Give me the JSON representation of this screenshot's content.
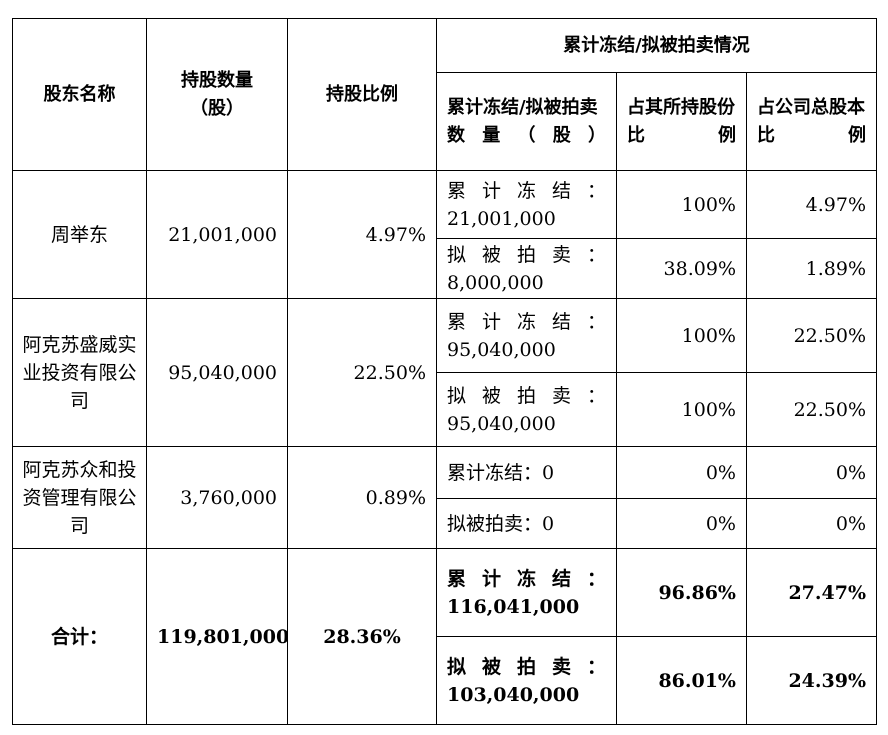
{
  "header": {
    "holder_name": "股东名称",
    "shares_held": "持股数量\n（股）",
    "holding_ratio": "持股比例",
    "group_title": "累计冻结/拟被拍卖情况",
    "frozen_qty": "累计冻结/拟被拍卖数量（股）",
    "pct_of_holding": "占其所持股份比例",
    "pct_of_total": "占公司总股本比例"
  },
  "rows": [
    {
      "name": "周举东",
      "shares": "21,001,000",
      "ratio": "4.97%",
      "sub": [
        {
          "label": "累计冻结：",
          "qty": "21,001,000",
          "pct_holding": "100%",
          "pct_total": "4.97%"
        },
        {
          "label": "拟被拍卖：",
          "qty": "8,000,000",
          "pct_holding": "38.09%",
          "pct_total": "1.89%"
        }
      ]
    },
    {
      "name": "阿克苏盛威实业投资有限公司",
      "shares": "95,040,000",
      "ratio": "22.50%",
      "sub": [
        {
          "label": "累计冻结：",
          "qty": "95,040,000",
          "pct_holding": "100%",
          "pct_total": "22.50%"
        },
        {
          "label": "拟被拍卖：",
          "qty": "95,040,000",
          "pct_holding": "100%",
          "pct_total": "22.50%"
        }
      ]
    },
    {
      "name": "阿克苏众和投资管理有限公司",
      "shares": "3,760,000",
      "ratio": "0.89%",
      "sub": [
        {
          "label": "累计冻结：0",
          "qty": "",
          "pct_holding": "0%",
          "pct_total": "0%"
        },
        {
          "label": "拟被拍卖：0",
          "qty": "",
          "pct_holding": "0%",
          "pct_total": "0%"
        }
      ]
    }
  ],
  "total": {
    "label": "合计：",
    "shares": "119,801,000",
    "ratio": "28.36%",
    "sub": [
      {
        "label": "累计冻结：",
        "qty": "116,041,000",
        "pct_holding": "96.86%",
        "pct_total": "27.47%"
      },
      {
        "label": "拟被拍卖：",
        "qty": "103,040,000",
        "pct_holding": "86.01%",
        "pct_total": "24.39%"
      }
    ]
  }
}
